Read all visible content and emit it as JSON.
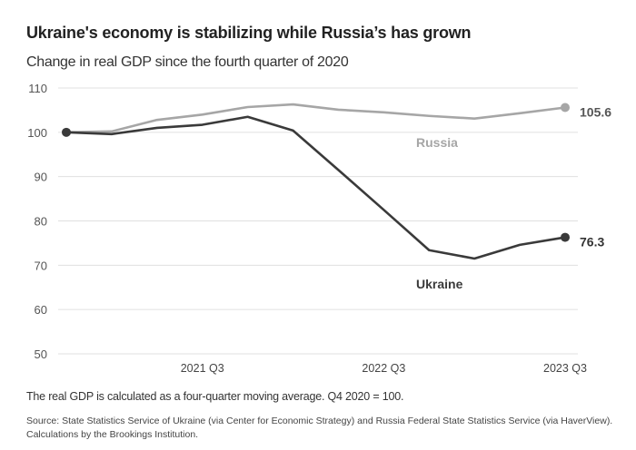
{
  "title": "Ukraine's economy is stabilizing while Russia’s has grown",
  "subtitle": "Change in real GDP since the fourth quarter of 2020",
  "note": "The real GDP is calculated as a four-quarter moving average. Q4 2020 = 100.",
  "source": "Source: State Statistics Service of Ukraine (via Center for Economic Strategy) and Russia Federal State Statistics Service (via HaverView). Calculations by the Brookings Institution.",
  "chart_data": {
    "type": "line",
    "title": "Ukraine's economy is stabilizing while Russia’s has grown",
    "subtitle": "Change in real GDP since the fourth quarter of 2020",
    "xlabel": "",
    "ylabel": "",
    "x": [
      "2020 Q4",
      "2021 Q1",
      "2021 Q2",
      "2021 Q3",
      "2021 Q4",
      "2022 Q1",
      "2022 Q2",
      "2022 Q3",
      "2022 Q4",
      "2023 Q1",
      "2023 Q2",
      "2023 Q3"
    ],
    "xticks": [
      "2021 Q3",
      "2022 Q3",
      "2023 Q3"
    ],
    "yticks": [
      "110",
      "100",
      "90",
      "80",
      "70",
      "60",
      "50"
    ],
    "ylim": [
      50,
      110
    ],
    "grid": true,
    "series": [
      {
        "name": "Russia",
        "color": "#a6a6a6",
        "values": [
          100,
          100.2,
          102.8,
          104.0,
          105.7,
          106.3,
          105.1,
          104.5,
          103.7,
          103.1,
          104.3,
          105.6
        ],
        "end_label": "105.6"
      },
      {
        "name": "Ukraine",
        "color": "#3a3a3a",
        "values": [
          100,
          99.6,
          101.0,
          101.7,
          103.5,
          100.4,
          91.5,
          82.5,
          73.4,
          71.5,
          74.6,
          76.3
        ],
        "end_label": "76.3"
      }
    ]
  }
}
